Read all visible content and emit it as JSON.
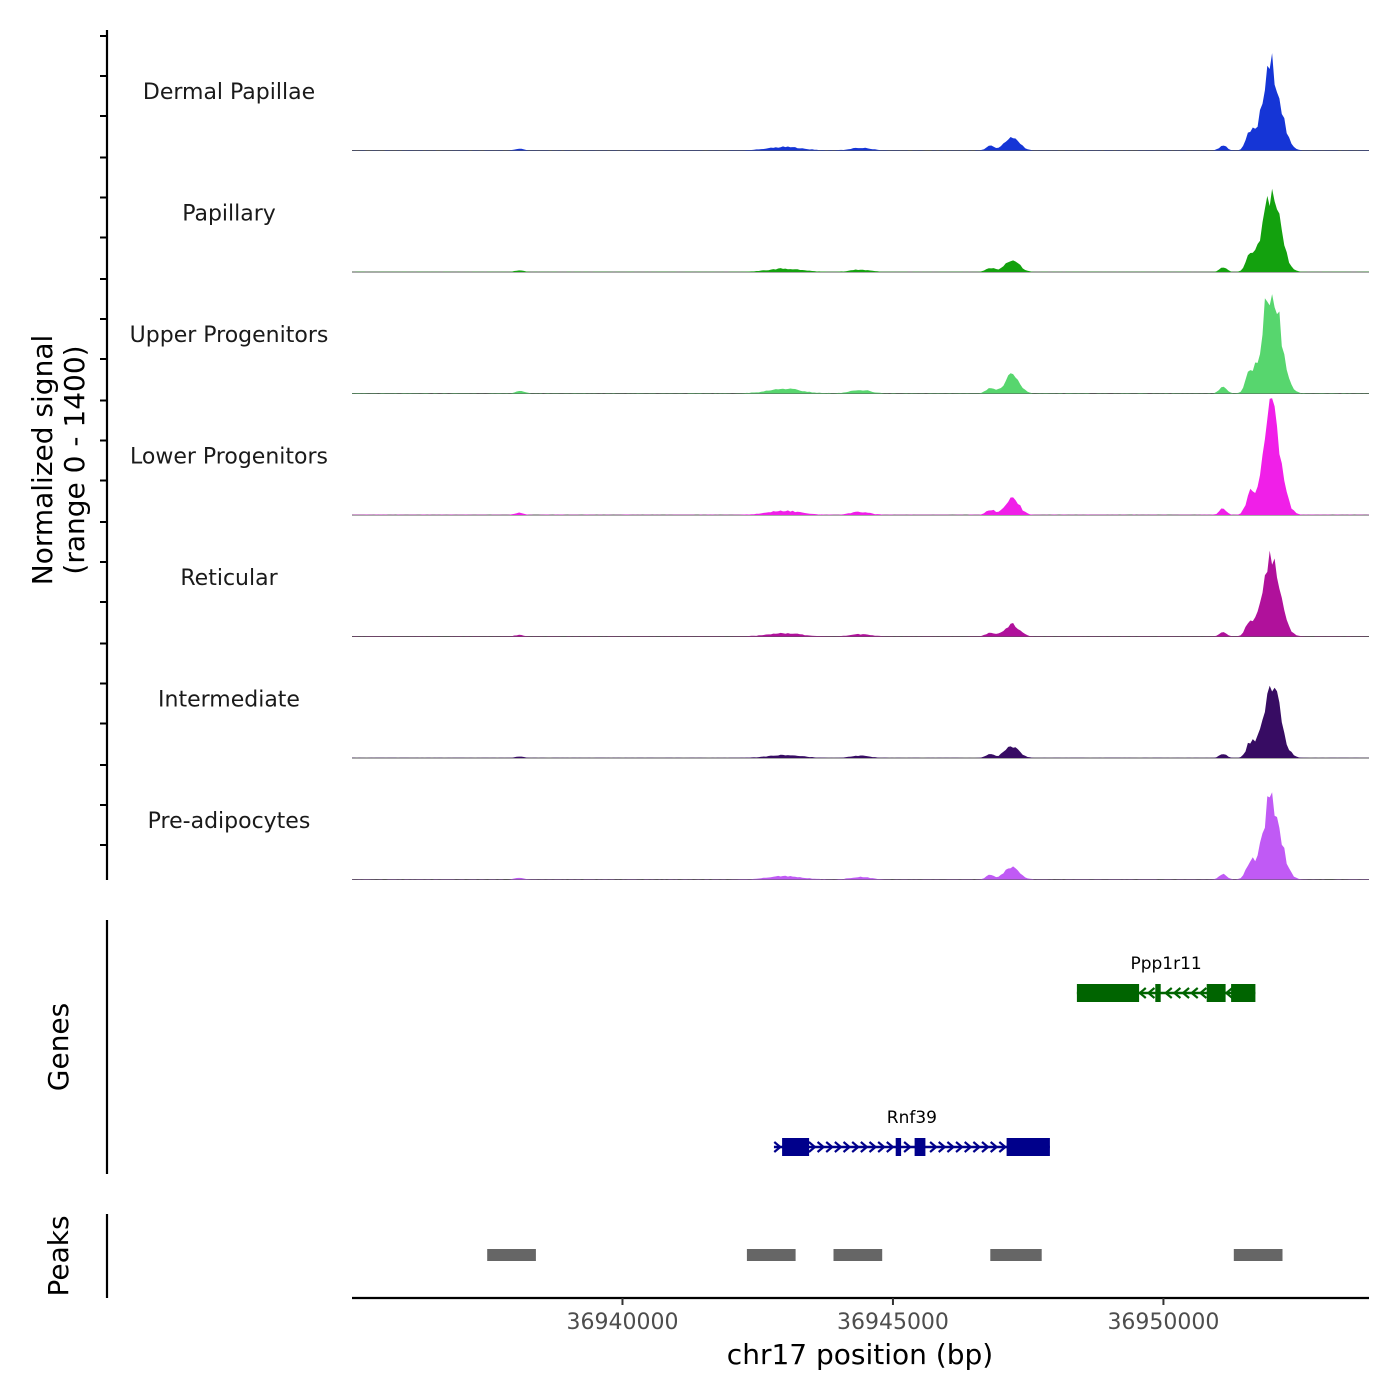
{
  "chart_data": {
    "type": "area",
    "title": "",
    "ylabel_line1": "Normalized signal",
    "ylabel_line2": "(range 0 - 1400)",
    "ylim": [
      0,
      1400
    ],
    "xlabel": "chr17 position (bp)",
    "xlim": [
      36935000,
      36953800
    ],
    "x_ticks": [
      36940000,
      36945000,
      36950000
    ],
    "x_tick_labels": [
      "36940000",
      "36945000",
      "36950000"
    ],
    "region_peaks": [
      {
        "center": 36952000,
        "width": 320,
        "rel": 1.0
      },
      {
        "center": 36951600,
        "width": 150,
        "rel": 0.18
      },
      {
        "center": 36951100,
        "width": 130,
        "rel": 0.06
      },
      {
        "center": 36947200,
        "width": 260,
        "rel": 0.16
      },
      {
        "center": 36946800,
        "width": 160,
        "rel": 0.05
      },
      {
        "center": 36943000,
        "width": 600,
        "rel": 0.04
      },
      {
        "center": 36944400,
        "width": 350,
        "rel": 0.03
      },
      {
        "center": 36938100,
        "width": 150,
        "rel": 0.02
      }
    ],
    "series": [
      {
        "name": "Dermal Papillae",
        "color": "#1535d6",
        "scale": 1020
      },
      {
        "name": "Papillary",
        "color": "#13a10e",
        "scale": 960
      },
      {
        "name": "Upper Progenitors",
        "color": "#57d66e",
        "scale": 1330
      },
      {
        "name": "Lower Progenitors",
        "color": "#f01fe8",
        "scale": 1230
      },
      {
        "name": "Reticular",
        "color": "#b0119b",
        "scale": 920
      },
      {
        "name": "Intermediate",
        "color": "#370c63",
        "scale": 860
      },
      {
        "name": "Pre-adipocytes",
        "color": "#c05af5",
        "scale": 980
      }
    ],
    "genes_label": "Genes",
    "genes": [
      {
        "name": "Ppp1r11",
        "strand": "-",
        "color": "#006400",
        "start": 36948400,
        "end": 36951700,
        "exons": [
          [
            36948400,
            36949550
          ],
          [
            36949850,
            36949950
          ],
          [
            36950800,
            36951150
          ],
          [
            36951250,
            36951700
          ]
        ]
      },
      {
        "name": "Rnf39",
        "strand": "+",
        "color": "#00008b",
        "start": 36942800,
        "end": 36947900,
        "exons": [
          [
            36942950,
            36943450
          ],
          [
            36945050,
            36945150
          ],
          [
            36945400,
            36945600
          ],
          [
            36947100,
            36947900
          ]
        ]
      }
    ],
    "peaks_label": "Peaks",
    "peaks_color": "#666666",
    "peaks": [
      [
        36937500,
        36938400
      ],
      [
        36942300,
        36943200
      ],
      [
        36943900,
        36944800
      ],
      [
        36946800,
        36947750
      ],
      [
        36951300,
        36952200
      ]
    ]
  }
}
